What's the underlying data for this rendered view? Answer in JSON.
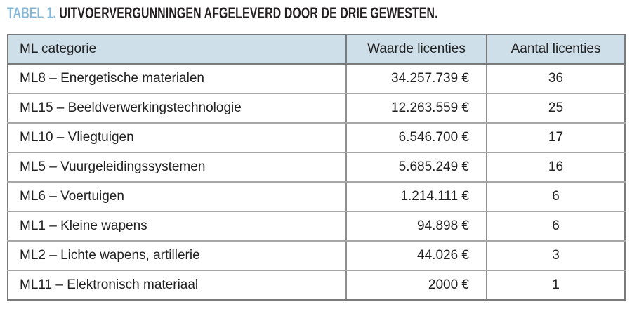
{
  "title": {
    "label": "TABEL 1.",
    "text": "UITVOERVERGUNNINGEN AFGELEVERD DOOR DE DRIE GEWESTEN."
  },
  "colors": {
    "accent_blue": "#87b7d6",
    "header_bg": "#cfdfe9",
    "text": "#212121",
    "border_outer": "#7a7a7a",
    "border_inner": "#a6a6a6"
  },
  "table": {
    "columns": [
      "ML categorie",
      "Waarde licenties",
      "Aantal licenties"
    ],
    "rows": [
      {
        "categorie": "ML8 – Energetische materialen",
        "waarde": "34.257.739 €",
        "aantal": "36"
      },
      {
        "categorie": "ML15 – Beeldverwerkingstechnologie",
        "waarde": "12.263.559 €",
        "aantal": "25"
      },
      {
        "categorie": "ML10 – Vliegtuigen",
        "waarde": "6.546.700 €",
        "aantal": "17"
      },
      {
        "categorie": "ML5 – Vuurgeleidingssystemen",
        "waarde": "5.685.249 €",
        "aantal": "16"
      },
      {
        "categorie": "ML6 – Voertuigen",
        "waarde": "1.214.111 €",
        "aantal": "6"
      },
      {
        "categorie": "ML1 – Kleine wapens",
        "waarde": "94.898 €",
        "aantal": "6"
      },
      {
        "categorie": "ML2 – Lichte wapens, artillerie",
        "waarde": "44.026 €",
        "aantal": "3"
      },
      {
        "categorie": "ML11 – Elektronisch materiaal",
        "waarde": "2000 €",
        "aantal": "1"
      }
    ]
  },
  "chart_data": {
    "type": "table",
    "title": "TABEL 1. UITVOERVERGUNNINGEN AFGELEVERD DOOR DE DRIE GEWESTEN.",
    "columns": [
      "ML categorie",
      "Waarde licenties",
      "Aantal licenties"
    ],
    "categories": [
      "ML8 – Energetische materialen",
      "ML15 – Beeldverwerkingstechnologie",
      "ML10 – Vliegtuigen",
      "ML5 – Vuurgeleidingssystemen",
      "ML6 – Voertuigen",
      "ML1 – Kleine wapens",
      "ML2 – Lichte wapens, artillerie",
      "ML11 – Elektronisch materiaal"
    ],
    "series": [
      {
        "name": "Waarde licenties (EUR)",
        "values": [
          34257739,
          12263559,
          6546700,
          5685249,
          1214111,
          94898,
          44026,
          2000
        ]
      },
      {
        "name": "Aantal licenties",
        "values": [
          36,
          25,
          17,
          16,
          6,
          6,
          3,
          1
        ]
      }
    ]
  }
}
